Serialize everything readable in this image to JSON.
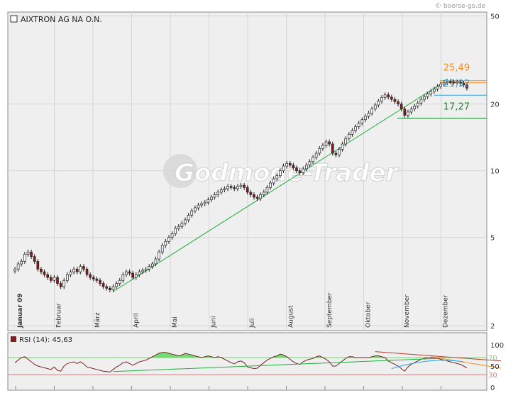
{
  "source_label": "© boerse-go.de",
  "watermark": "Godmode-Trader",
  "instrument_title": "AIXTRON AG NA O.N.",
  "rsi_label": "RSI (14): 45,63",
  "colors": {
    "bull": "#ffffff",
    "bear": "#8b1a1a",
    "up_trend": "#1fae3c",
    "support": "#1a8c2e",
    "resistance": "#f28c1e",
    "ma_blue": "#29a8e0",
    "rsi_line": "#7a2020",
    "rsi_fill": "#5ed85e",
    "rsi70": "#6fd86f",
    "rsi30": "#e87a7a"
  },
  "chart_data": [
    {
      "type": "candlestick",
      "scale": "log",
      "ylim": [
        1.9,
        52
      ],
      "yticks": [
        {
          "value": 50,
          "label": "50"
        },
        {
          "value": 20,
          "label": "20"
        },
        {
          "value": 10,
          "label": "10"
        },
        {
          "value": 5,
          "label": "5"
        },
        {
          "value": 2,
          "label": "2"
        }
      ],
      "months": [
        "Januar 09",
        "Februar",
        "März",
        "April",
        "Mai",
        "Juni",
        "Juli",
        "August",
        "September",
        "Oktober",
        "November",
        "Dezember"
      ],
      "closes": [
        3.6,
        3.8,
        3.9,
        4.2,
        4.3,
        4.1,
        3.9,
        3.6,
        3.5,
        3.4,
        3.3,
        3.2,
        3.3,
        3.1,
        3.0,
        3.2,
        3.4,
        3.5,
        3.6,
        3.5,
        3.7,
        3.6,
        3.4,
        3.3,
        3.25,
        3.2,
        3.1,
        3.0,
        2.95,
        2.9,
        3.0,
        3.1,
        3.2,
        3.4,
        3.5,
        3.45,
        3.3,
        3.4,
        3.5,
        3.55,
        3.6,
        3.7,
        3.8,
        4.0,
        4.3,
        4.6,
        4.8,
        5.0,
        5.2,
        5.5,
        5.6,
        5.8,
        6.0,
        6.3,
        6.6,
        6.8,
        7.0,
        7.1,
        7.2,
        7.4,
        7.6,
        7.8,
        8.0,
        8.2,
        8.3,
        8.5,
        8.4,
        8.3,
        8.5,
        8.6,
        8.4,
        8.0,
        7.8,
        7.6,
        7.5,
        7.8,
        8.0,
        8.4,
        8.8,
        9.2,
        9.5,
        10.0,
        10.5,
        10.8,
        10.6,
        10.3,
        10.0,
        9.8,
        10.2,
        10.6,
        11.0,
        11.5,
        12.0,
        12.6,
        13.0,
        13.5,
        13.2,
        12.0,
        11.8,
        12.5,
        13.2,
        14.0,
        14.6,
        15.2,
        15.8,
        16.4,
        17.0,
        17.6,
        18.2,
        19.0,
        19.8,
        20.6,
        21.4,
        22.0,
        21.5,
        21.0,
        20.5,
        20.0,
        19.0,
        17.8,
        18.4,
        19.0,
        19.6,
        20.2,
        21.0,
        21.6,
        22.2,
        22.8,
        23.4,
        24.0,
        24.6,
        25.0,
        25.3,
        25.2,
        25.0,
        25.2,
        24.8,
        24.4,
        23.6
      ],
      "levels": [
        {
          "label": "25,49",
          "value": 25.49,
          "color": "#f28c1e"
        },
        {
          "label": "21,92",
          "value": 21.92,
          "color": "#29a8e0"
        },
        {
          "label": "17,27",
          "value": 17.27,
          "color": "#1a8c2e"
        }
      ]
    },
    {
      "type": "line",
      "name": "RSI (14): 45,63",
      "ylim": [
        0,
        100
      ],
      "yticks": [
        {
          "value": 100,
          "label": "100"
        },
        {
          "value": 50,
          "label": "50"
        },
        {
          "value": 0,
          "label": "0"
        }
      ],
      "bands": [
        {
          "value": 70,
          "label": "70",
          "color": "#6fd86f"
        },
        {
          "value": 30,
          "label": "30",
          "color": "#e87a7a"
        }
      ],
      "values": [
        58,
        64,
        70,
        72,
        66,
        60,
        54,
        50,
        48,
        46,
        44,
        42,
        48,
        40,
        38,
        50,
        56,
        58,
        60,
        56,
        60,
        55,
        48,
        46,
        44,
        42,
        40,
        38,
        37,
        36,
        42,
        48,
        52,
        58,
        60,
        56,
        52,
        56,
        60,
        62,
        64,
        68,
        72,
        76,
        80,
        82,
        82,
        80,
        78,
        76,
        74,
        76,
        80,
        78,
        76,
        74,
        72,
        70,
        72,
        74,
        72,
        70,
        72,
        70,
        66,
        62,
        58,
        55,
        60,
        62,
        58,
        48,
        46,
        44,
        45,
        52,
        58,
        64,
        68,
        72,
        74,
        78,
        76,
        72,
        66,
        60,
        56,
        54,
        60,
        64,
        66,
        68,
        72,
        74,
        70,
        66,
        60,
        50,
        50,
        56,
        62,
        68,
        72,
        72,
        70,
        70,
        70,
        70,
        70,
        72,
        74,
        74,
        72,
        70,
        62,
        58,
        54,
        50,
        44,
        38,
        48,
        54,
        58,
        62,
        66,
        68,
        70,
        70,
        70,
        68,
        66,
        64,
        62,
        60,
        58,
        56,
        54,
        50,
        45.63
      ]
    }
  ]
}
